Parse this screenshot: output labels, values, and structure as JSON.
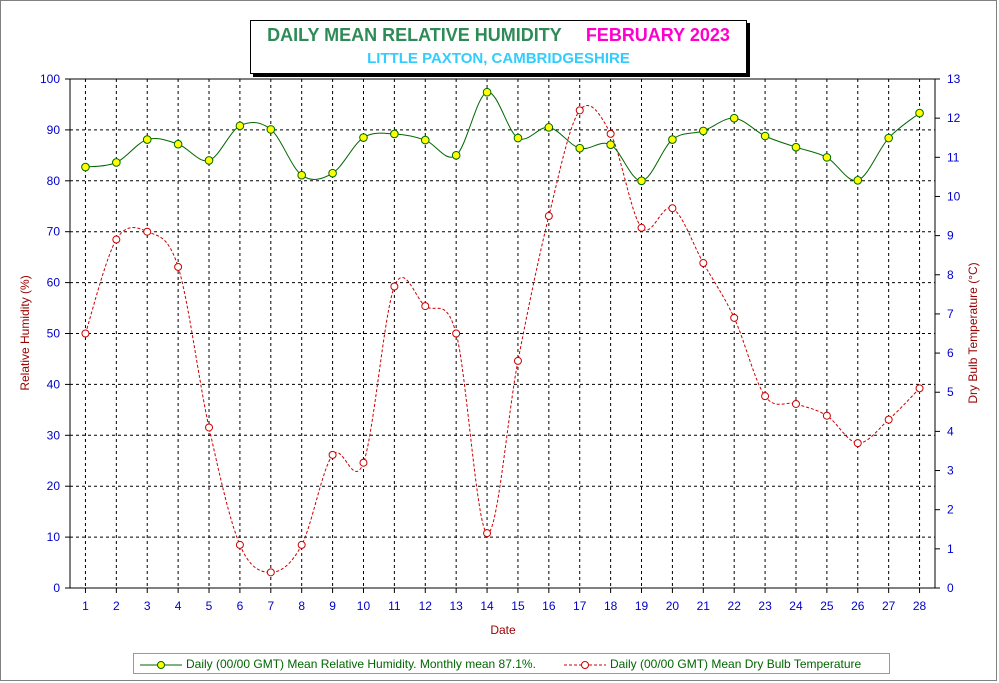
{
  "title": {
    "main": "DAILY MEAN RELATIVE HUMIDITY",
    "month": "FEBRUARY 2023",
    "subtitle": "LITTLE PAXTON, CAMBRIDGESHIRE"
  },
  "colors": {
    "rh_line": "#006600",
    "rh_marker": "#ffff00",
    "temp_line": "#cc0000",
    "temp_marker": "#ff9999",
    "axis_text": "#0000cc",
    "axis_title": "#990000"
  },
  "legend": {
    "rh": "Daily (00/00 GMT) Mean Relative Humidity. Monthly mean 87.1%.",
    "temp": "Daily (00/00 GMT) Mean Dry Bulb Temperature"
  },
  "chart_data": {
    "type": "line",
    "title": "DAILY MEAN RELATIVE HUMIDITY FEBRUARY 2023",
    "subtitle": "LITTLE PAXTON, CAMBRIDGESHIRE",
    "xlabel": "Date",
    "ylabel": "Relative Humidity (%)",
    "y2label": "Dry Bulb Temperature (°C)",
    "x": [
      1,
      2,
      3,
      4,
      5,
      6,
      7,
      8,
      9,
      10,
      11,
      12,
      13,
      14,
      15,
      16,
      17,
      18,
      19,
      20,
      21,
      22,
      23,
      24,
      25,
      26,
      27,
      28
    ],
    "ylim": [
      0,
      100
    ],
    "y2lim": [
      0,
      13
    ],
    "yticks": [
      0,
      10,
      20,
      30,
      40,
      50,
      60,
      70,
      80,
      90,
      100
    ],
    "y2ticks": [
      0,
      1,
      2,
      3,
      4,
      5,
      6,
      7,
      8,
      9,
      10,
      11,
      12,
      13
    ],
    "grid": true,
    "legend_position": "bottom",
    "series": [
      {
        "name": "Daily (00/00 GMT) Mean Relative Humidity. Monthly mean 87.1%.",
        "axis": "left",
        "style": "solid",
        "values": [
          82.7,
          83.6,
          88.1,
          87.2,
          84.0,
          90.8,
          90.1,
          81.1,
          81.5,
          88.5,
          89.2,
          88.0,
          85.0,
          97.4,
          88.4,
          90.5,
          86.4,
          87.1,
          80.0,
          88.1,
          89.8,
          92.3,
          88.8,
          86.6,
          84.6,
          80.1,
          88.4,
          93.3
        ]
      },
      {
        "name": "Daily (00/00 GMT) Mean Dry Bulb Temperature",
        "axis": "right",
        "style": "dashed",
        "values": [
          6.5,
          8.9,
          9.1,
          8.2,
          4.1,
          1.1,
          0.4,
          1.1,
          3.4,
          3.2,
          7.7,
          7.2,
          6.5,
          1.4,
          5.8,
          9.5,
          12.2,
          11.6,
          9.2,
          9.7,
          8.3,
          6.9,
          4.9,
          4.7,
          4.4,
          3.7,
          4.3,
          5.1
        ]
      }
    ]
  }
}
